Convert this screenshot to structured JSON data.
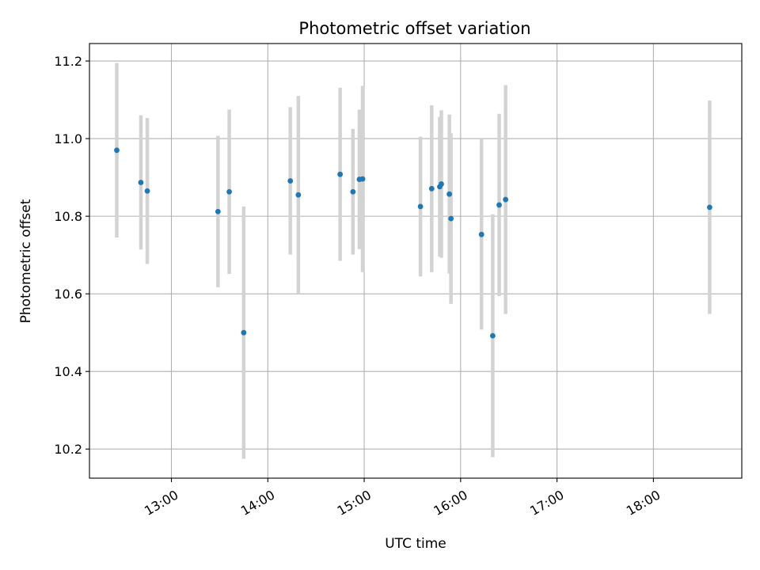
{
  "chart_data": {
    "type": "scatter",
    "title": "Photometric offset variation",
    "xlabel": "UTC time",
    "ylabel": "Photometric offset",
    "x_axis": "time",
    "xlim": [
      "12:09",
      "18:55"
    ],
    "ylim": [
      10.125,
      11.245
    ],
    "x_ticks": [
      "13:00",
      "14:00",
      "15:00",
      "16:00",
      "17:00",
      "18:00"
    ],
    "y_ticks": [
      "10.2",
      "10.4",
      "10.6",
      "10.8",
      "11.0",
      "11.2"
    ],
    "grid": true,
    "legend": "none",
    "marker_color": "#1f77b4",
    "errorbar_color": "#d3d3d3",
    "points": [
      {
        "time": "12:26",
        "y": 10.97,
        "err": 0.225
      },
      {
        "time": "12:41",
        "y": 10.887,
        "err": 0.173
      },
      {
        "time": "12:45",
        "y": 10.865,
        "err": 0.188
      },
      {
        "time": "13:29",
        "y": 10.812,
        "err": 0.195
      },
      {
        "time": "13:36",
        "y": 10.863,
        "err": 0.212
      },
      {
        "time": "13:45",
        "y": 10.5,
        "err": 0.325
      },
      {
        "time": "14:14",
        "y": 10.891,
        "err": 0.19
      },
      {
        "time": "14:19",
        "y": 10.855,
        "err": 0.255
      },
      {
        "time": "14:45",
        "y": 10.908,
        "err": 0.223
      },
      {
        "time": "14:53",
        "y": 10.863,
        "err": 0.162
      },
      {
        "time": "14:57",
        "y": 10.895,
        "err": 0.18
      },
      {
        "time": "14:59",
        "y": 10.896,
        "err": 0.24
      },
      {
        "time": "15:35",
        "y": 10.825,
        "err": 0.18
      },
      {
        "time": "15:42",
        "y": 10.871,
        "err": 0.215
      },
      {
        "time": "15:47",
        "y": 10.876,
        "err": 0.18
      },
      {
        "time": "15:48",
        "y": 10.883,
        "err": 0.19
      },
      {
        "time": "15:53",
        "y": 10.857,
        "err": 0.205
      },
      {
        "time": "15:54",
        "y": 10.794,
        "err": 0.22
      },
      {
        "time": "16:13",
        "y": 10.753,
        "err": 0.245
      },
      {
        "time": "16:20",
        "y": 10.492,
        "err": 0.313
      },
      {
        "time": "16:24",
        "y": 10.829,
        "err": 0.235
      },
      {
        "time": "16:28",
        "y": 10.843,
        "err": 0.295
      },
      {
        "time": "18:35",
        "y": 10.823,
        "err": 0.275
      }
    ]
  }
}
